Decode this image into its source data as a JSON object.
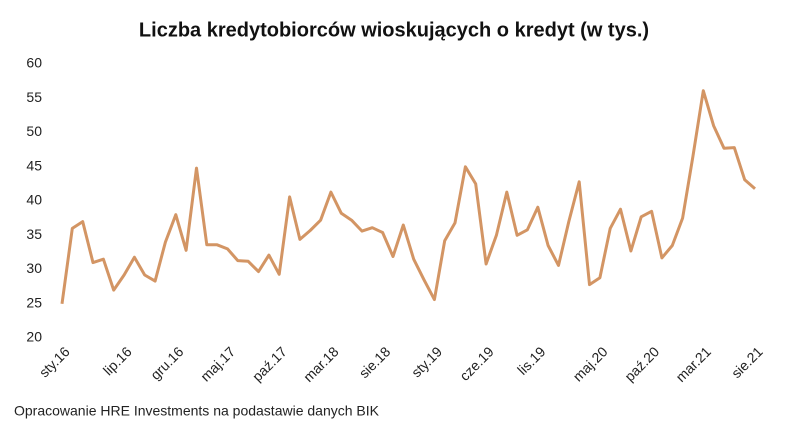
{
  "chart_data": {
    "type": "line",
    "title": "Liczba kredytobiorców wioskujących o kredyt (w tys.)",
    "source": "Opracowanie HRE Investments na podastawie danych BIK",
    "categories": [
      "sty.16",
      null,
      null,
      null,
      null,
      null,
      "lip.16",
      null,
      null,
      null,
      null,
      "gru.16",
      null,
      null,
      null,
      null,
      "maj.17",
      null,
      null,
      null,
      null,
      "paź.17",
      null,
      null,
      null,
      null,
      "mar.18",
      null,
      null,
      null,
      null,
      "sie.18",
      null,
      null,
      null,
      null,
      "sty.19",
      null,
      null,
      null,
      null,
      "cze.19",
      null,
      null,
      null,
      null,
      "lis.19",
      null,
      null,
      null,
      null,
      null,
      "maj.20",
      null,
      null,
      null,
      null,
      "paź.20",
      null,
      null,
      null,
      null,
      "mar.21",
      null,
      null,
      null,
      null,
      "sie.21"
    ],
    "series": [
      {
        "name": null,
        "color": "#d39564",
        "values": [
          25,
          36,
          37,
          31,
          31.5,
          27,
          29.2,
          31.8,
          29.2,
          28.3,
          34,
          38,
          32.8,
          44.8,
          33.6,
          33.6,
          33,
          31.3,
          31.2,
          29.7,
          32.1,
          29.3,
          40.6,
          34.4,
          35.7,
          37.2,
          41.3,
          38.2,
          37.2,
          35.6,
          36.1,
          35.4,
          31.9,
          36.5,
          31.5,
          28.5,
          25.6,
          34.2,
          36.8,
          45,
          42.5,
          30.8,
          35,
          41.3,
          35,
          35.8,
          39.1,
          33.5,
          30.6,
          37,
          42.8,
          27.8,
          28.8,
          36,
          38.8,
          32.7,
          37.7,
          38.5,
          31.7,
          33.5,
          37.5,
          46.5,
          56.1,
          51,
          47.7,
          47.8,
          43.1,
          41.8
        ]
      }
    ],
    "ylim": [
      20,
      60
    ],
    "yticks": [
      20,
      25,
      30,
      35,
      40,
      45,
      50,
      55,
      60
    ],
    "grid": false
  }
}
